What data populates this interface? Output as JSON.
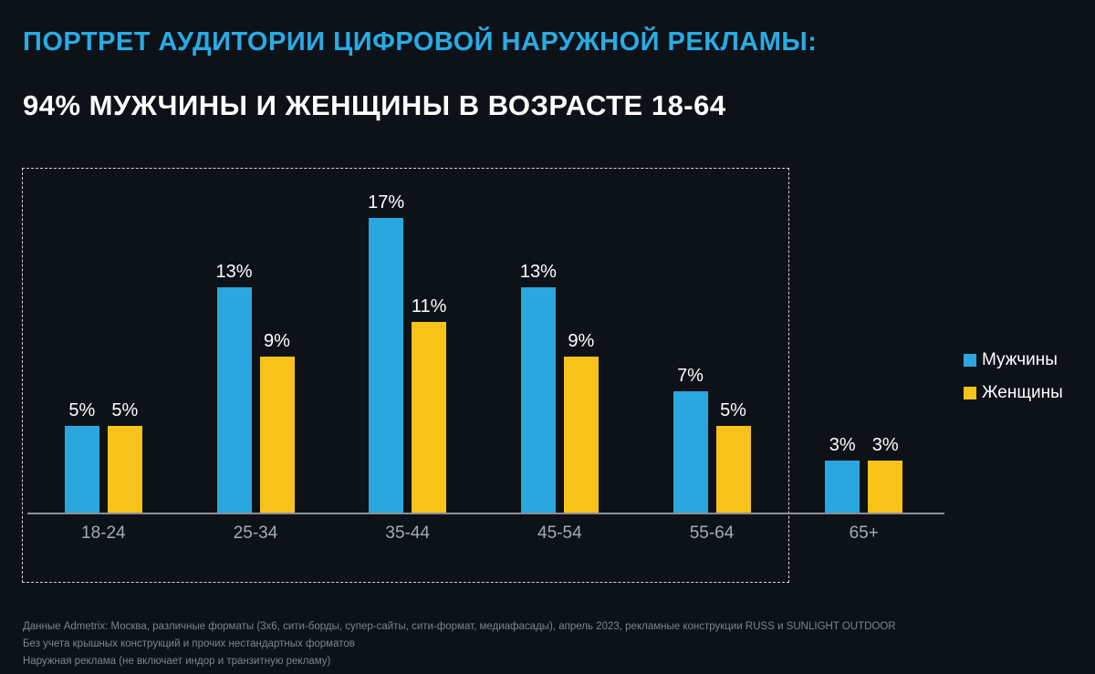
{
  "title": {
    "line1": "ПОРТРЕТ АУДИТОРИИ ЦИФРОВОЙ НАРУЖНОЙ РЕКЛАМЫ:",
    "line2": "94% МУЖЧИНЫ И ЖЕНЩИНЫ В ВОЗРАСТЕ 18-64"
  },
  "colors": {
    "background": "#0d1219",
    "title_accent": "#29abe2",
    "male": "#2ba7df",
    "female": "#f7c31a",
    "axis": "#8b9097",
    "category_label": "#a6abb3",
    "footnote": "#7f848d",
    "highlight_border": "#d6d6d6"
  },
  "chart_data": {
    "type": "bar",
    "title": "ПОРТРЕТ АУДИТОРИИ ЦИФРОВОЙ НАРУЖНОЙ РЕКЛАМЫ: 94% МУЖЧИНЫ И ЖЕНЩИНЫ В ВОЗРАСТЕ 18-64",
    "categories": [
      "18-24",
      "25-34",
      "35-44",
      "45-54",
      "55-64",
      "65+"
    ],
    "series": [
      {
        "name": "Мужчины",
        "color_key": "male",
        "values": [
          5,
          13,
          17,
          13,
          7,
          3
        ]
      },
      {
        "name": "Женщины",
        "color_key": "female",
        "values": [
          5,
          9,
          11,
          9,
          5,
          3
        ]
      }
    ],
    "value_suffix": "%",
    "xlabel": "",
    "ylabel": "",
    "ylim": [
      0,
      18
    ],
    "grid": false,
    "legend_position": "right",
    "annotations": [
      "dashed highlight box around age groups 18-24 through 55-64"
    ]
  },
  "legend": {
    "items": [
      {
        "label": "Мужчины"
      },
      {
        "label": "Женщины"
      }
    ]
  },
  "footnotes": [
    "Данные Admetrix: Москва, различные форматы (3x6, сити-борды, супер-сайты, сити-формат, медиафасады), апрель 2023, рекламные конструкции RUSS и SUNLIGHT OUTDOOR",
    "Без учета крышных конструкций и прочих нестандартных форматов",
    "Наружная реклама (не включает индор и транзитную рекламу)"
  ]
}
